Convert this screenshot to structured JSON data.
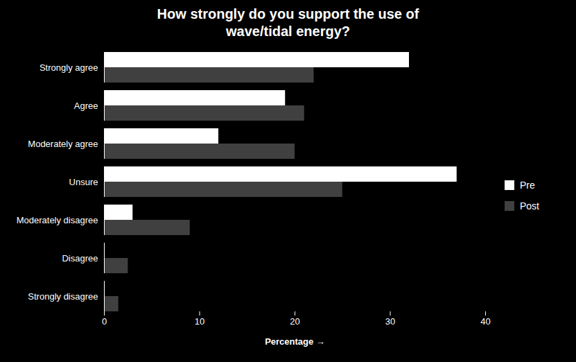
{
  "chart_data": {
    "type": "bar",
    "orientation": "horizontal",
    "title": "How strongly do you support the use of\nwave/tidal energy?",
    "categories": [
      "Strongly agree",
      "Agree",
      "Moderately agree",
      "Unsure",
      "Moderately disagree",
      "Disagree",
      "Strongly disagree"
    ],
    "series": [
      {
        "name": "Pre",
        "color": "#ffffff",
        "values": [
          32,
          19,
          12,
          37,
          3,
          0,
          0
        ]
      },
      {
        "name": "Post",
        "color": "#404040",
        "values": [
          22,
          21,
          20,
          25,
          9,
          2.5,
          1.5
        ]
      }
    ],
    "xlabel": "Percentage",
    "xlim": [
      0,
      40
    ],
    "xticks": [
      0,
      10,
      20,
      30,
      40
    ],
    "legend": "right",
    "grid": false
  }
}
